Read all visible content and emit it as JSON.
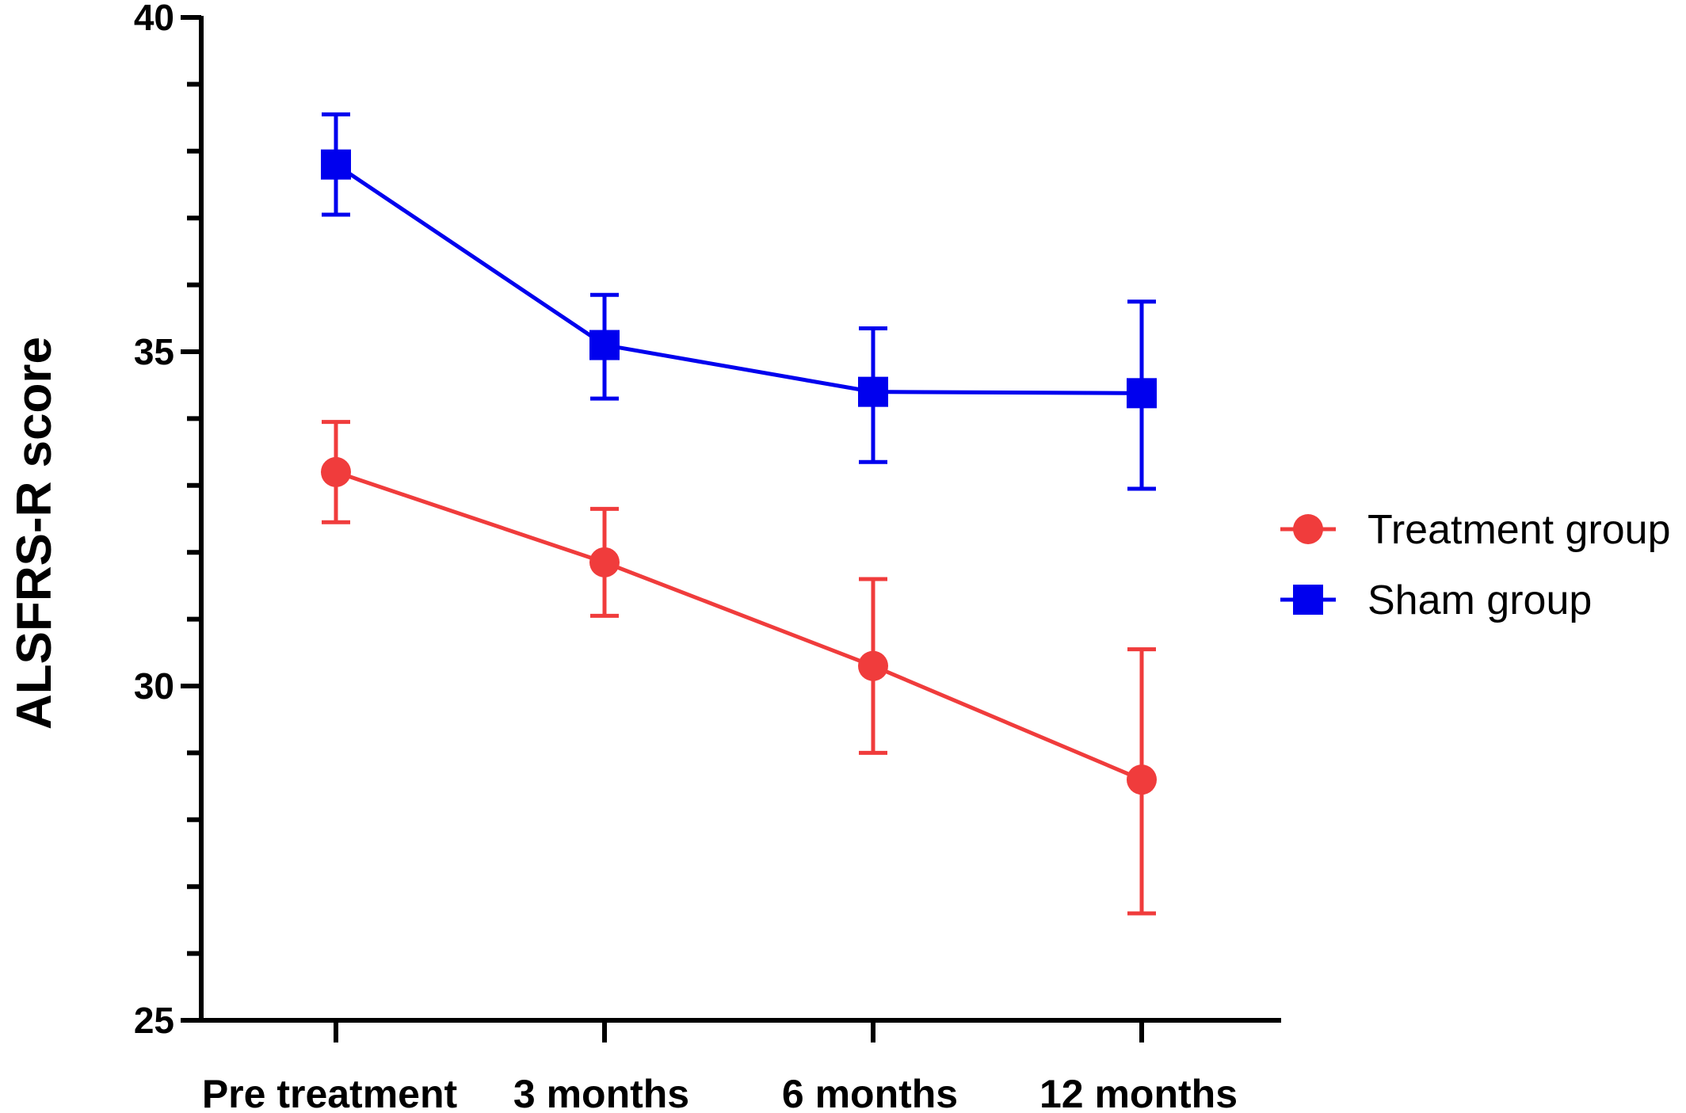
{
  "chart_data": {
    "type": "line",
    "ylabel": "ALSFRS-R score",
    "xlabel": "",
    "ylim": [
      25,
      40
    ],
    "yticks": [
      25,
      30,
      35,
      40
    ],
    "categories": [
      "Pre treatment",
      "3 months",
      "6 months",
      "12 months"
    ],
    "series": [
      {
        "name": "Treatment group",
        "color": "#f03c3c",
        "marker": "circle",
        "values": [
          33.2,
          31.85,
          30.3,
          28.6
        ],
        "error_upper": [
          33.95,
          32.65,
          31.6,
          30.55
        ],
        "error_lower": [
          32.45,
          31.05,
          29.0,
          26.6
        ]
      },
      {
        "name": "Sham group",
        "color": "#0000ee",
        "marker": "square",
        "values": [
          37.8,
          35.1,
          34.4,
          34.38
        ],
        "error_upper": [
          38.55,
          35.85,
          35.35,
          35.75
        ],
        "error_lower": [
          37.05,
          34.3,
          33.35,
          32.95
        ]
      }
    ],
    "legend": "right",
    "grid": false
  }
}
